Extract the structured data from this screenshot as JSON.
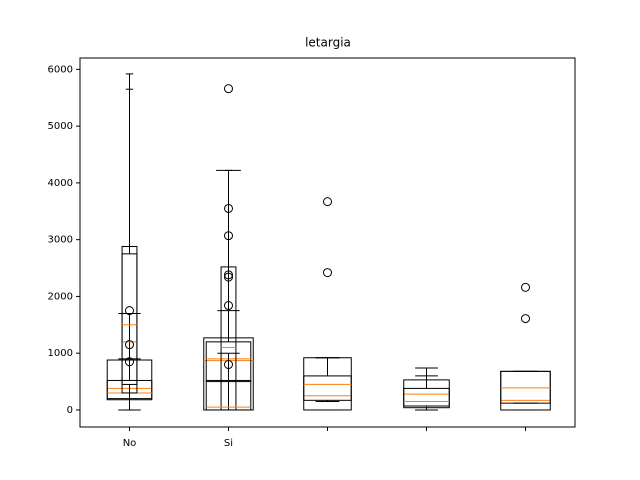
{
  "chart_data": {
    "type": "boxplot",
    "title": "letargia",
    "categories": [
      "No",
      "Si",
      null,
      null,
      null
    ],
    "ylim": [
      -300,
      6200
    ],
    "yticks": [
      0,
      1000,
      2000,
      3000,
      4000,
      5000,
      6000
    ],
    "box_color": "#000000",
    "median_color": "#ff7f0e",
    "boxes": [
      {
        "position": 1,
        "whislo": 0,
        "q1": 200,
        "med": 380,
        "q3": 520,
        "whishi": 900,
        "fliers": []
      },
      {
        "position": 1,
        "whislo": 0,
        "q1": 180,
        "med": 300,
        "q3": 880,
        "whishi": 1700,
        "fliers": []
      },
      {
        "position": 1,
        "whislo": 0,
        "q1": 300,
        "med": 1200,
        "q3": 2750,
        "whishi": 5650,
        "fliers": []
      },
      {
        "position": 1,
        "whislo": 0,
        "q1": 450,
        "med": 1500,
        "q3": 2880,
        "whishi": 5920,
        "fliers": [
          1750,
          850,
          1150
        ]
      },
      {
        "position": 2,
        "whislo": 0,
        "q1": 0,
        "med": 870,
        "q3": 1270,
        "whishi": 4220,
        "fliers": [
          5660
        ]
      },
      {
        "position": 2,
        "whislo": 0,
        "q1": 500,
        "med": 900,
        "q3": 1200,
        "whishi": 1750,
        "fliers": []
      },
      {
        "position": 2,
        "whislo": 0,
        "q1": 0,
        "med": 1100,
        "q3": 2520,
        "whishi": 4220,
        "fliers": [
          3550,
          3070,
          2380,
          2340,
          1840,
          800
        ]
      },
      {
        "position": 2,
        "whislo": 0,
        "q1": 0,
        "med": 50,
        "q3": 520,
        "whishi": 1000,
        "fliers": []
      },
      {
        "position": 3,
        "whislo": 0,
        "q1": 0,
        "med": 250,
        "q3": 600,
        "whishi": 920,
        "fliers": [
          2420,
          3670
        ]
      },
      {
        "position": 3,
        "whislo": 150,
        "q1": 170,
        "med": 450,
        "q3": 920,
        "whishi": 920,
        "fliers": []
      },
      {
        "position": 4,
        "whislo": 0,
        "q1": 40,
        "med": 280,
        "q3": 530,
        "whishi": 740,
        "fliers": []
      },
      {
        "position": 4,
        "whislo": 0,
        "q1": 70,
        "med": 150,
        "q3": 380,
        "whishi": 600,
        "fliers": []
      },
      {
        "position": 5,
        "whislo": 0,
        "q1": 0,
        "med": 170,
        "q3": 680,
        "whishi": 680,
        "fliers": [
          1610,
          2160
        ]
      },
      {
        "position": 5,
        "whislo": 120,
        "q1": 120,
        "med": 390,
        "q3": 680,
        "whishi": 680,
        "fliers": []
      }
    ]
  }
}
